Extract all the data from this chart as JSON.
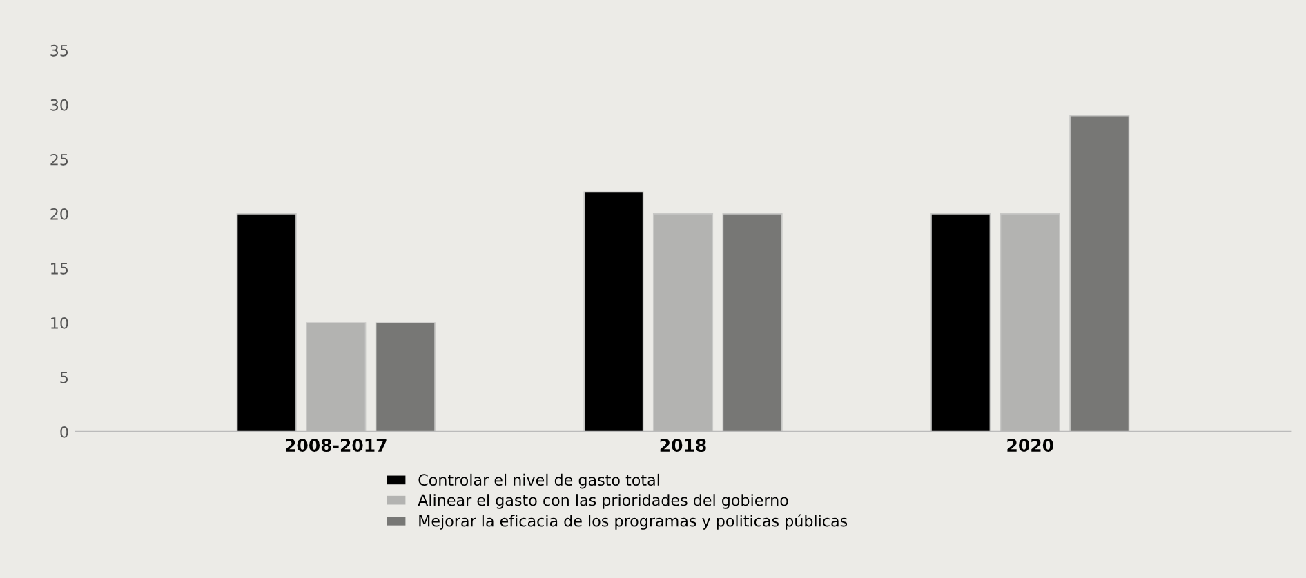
{
  "chart_data": {
    "type": "bar",
    "categories": [
      "2008-2017",
      "2018",
      "2020"
    ],
    "series": [
      {
        "name": "Controlar el nivel de gasto total",
        "color": "#000000",
        "values": [
          20,
          22,
          20
        ]
      },
      {
        "name": "Alinear el gasto con las prioridades del gobierno",
        "color": "#b3b3b1",
        "values": [
          10,
          20,
          20
        ]
      },
      {
        "name": "Mejorar la eficacia de los programas y politicas públicas",
        "color": "#777775",
        "values": [
          10,
          20,
          29
        ]
      }
    ],
    "ylim": [
      0,
      35
    ],
    "yticks": [
      0,
      5,
      10,
      15,
      20,
      25,
      30,
      35
    ],
    "grid": false,
    "legend": "bottom"
  }
}
